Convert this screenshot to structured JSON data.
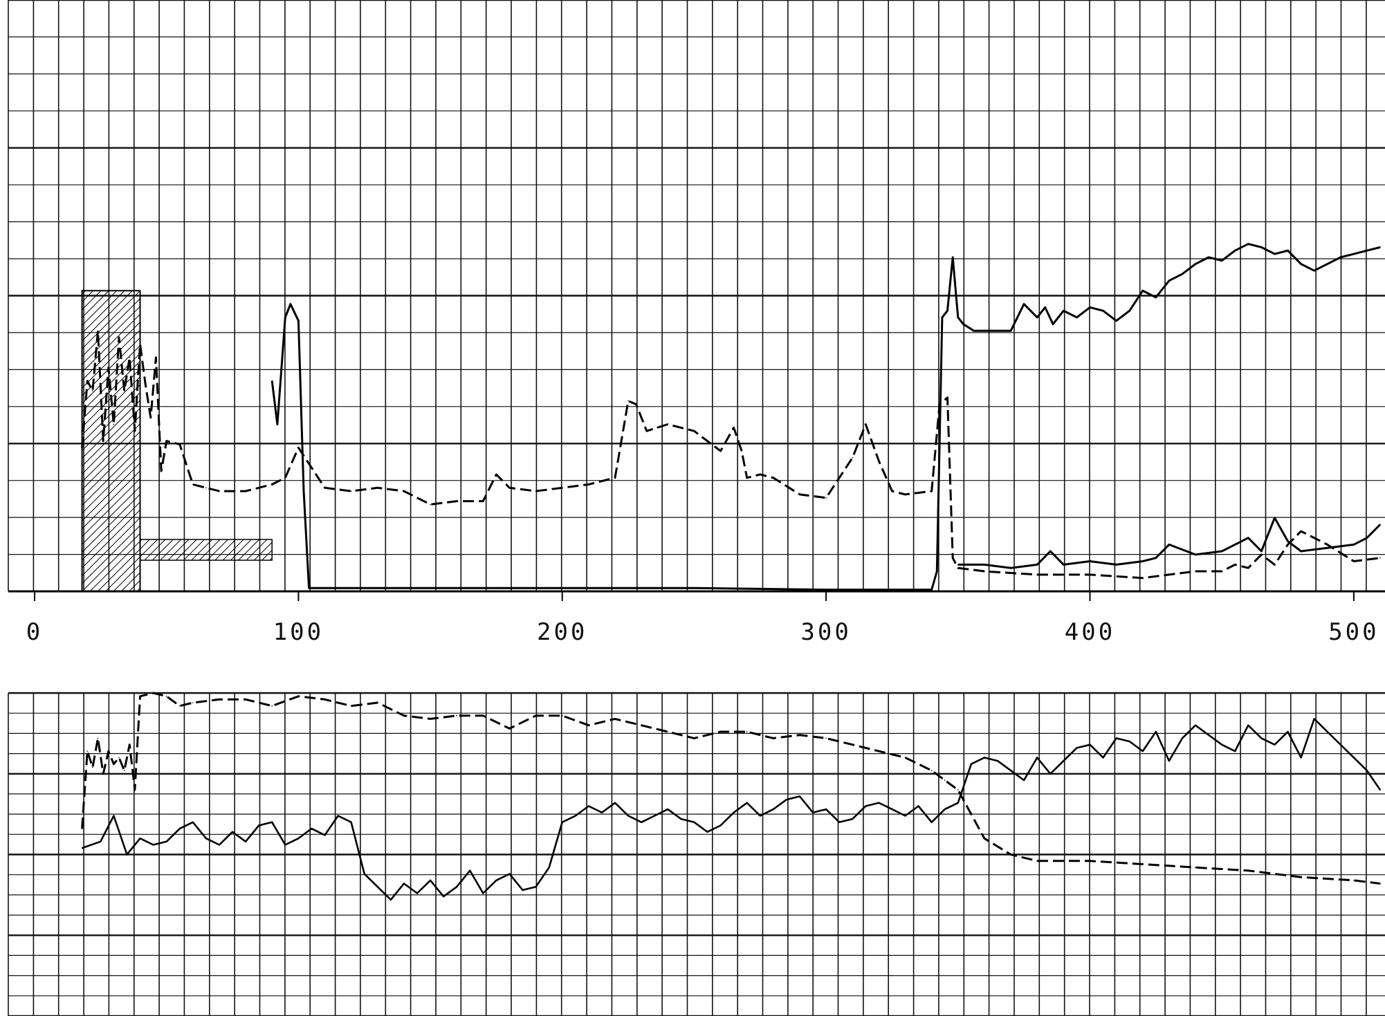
{
  "chart_data": [
    {
      "type": "line",
      "panel": "upper",
      "title": "",
      "xlabel": "",
      "ylabel": "",
      "grid": true,
      "xlim": [
        0,
        510
      ],
      "ylim": [
        0,
        100
      ],
      "x_tick_labels": [
        "0",
        "100",
        "200",
        "300",
        "400",
        "500"
      ],
      "x_tick_values": [
        0,
        100,
        200,
        300,
        400,
        500
      ],
      "series": [
        {
          "style": "solid",
          "x": [
            90,
            92,
            95,
            97,
            100,
            102,
            104,
            150,
            200,
            250,
            300,
            340,
            342,
            344,
            346,
            348,
            350,
            352,
            356,
            370,
            375,
            380,
            383,
            386,
            390,
            395,
            400,
            405,
            410,
            415,
            420,
            425,
            430,
            435,
            440,
            445,
            450,
            455,
            460,
            465,
            470,
            475,
            480,
            485,
            490,
            495,
            500,
            505,
            510
          ],
          "y": [
            63,
            50,
            82,
            86,
            81,
            30,
            1,
            1,
            1,
            1,
            0.5,
            0.5,
            6,
            82,
            84,
            100,
            82,
            80,
            78,
            78,
            86,
            82,
            85,
            80,
            84,
            82,
            85,
            84,
            81,
            84,
            90,
            88,
            93,
            95,
            98,
            100,
            99,
            102,
            104,
            103,
            101,
            102,
            98,
            96,
            98,
            100,
            101,
            102,
            103
          ]
        },
        {
          "style": "dashed",
          "x": [
            18,
            20,
            22,
            24,
            26,
            28,
            30,
            32,
            34,
            36,
            38,
            40,
            42,
            44,
            46,
            48,
            50,
            55,
            60,
            65,
            70,
            80,
            90,
            95,
            100,
            110,
            120,
            130,
            140,
            150,
            160,
            170,
            175,
            180,
            190,
            200,
            210,
            220,
            225,
            228,
            232,
            236,
            240,
            250,
            260,
            265,
            268,
            270,
            275,
            280,
            290,
            300,
            310,
            315,
            320,
            325,
            330,
            340,
            343,
            346,
            348,
            350,
            360,
            380,
            400,
            420,
            440,
            450,
            455,
            460,
            465,
            470,
            475,
            480,
            490,
            500,
            510
          ],
          "y": [
            43,
            63,
            60,
            78,
            45,
            67,
            50,
            76,
            60,
            70,
            48,
            74,
            62,
            52,
            70,
            36,
            45,
            44,
            32,
            31,
            30,
            30,
            32,
            34,
            43,
            31,
            30,
            31,
            30,
            26,
            27,
            27,
            35,
            31,
            30,
            31,
            32,
            34,
            57,
            56,
            48,
            49,
            50,
            48,
            42,
            49,
            42,
            34,
            35,
            34,
            29,
            28,
            40,
            50,
            39,
            30,
            29,
            30,
            56,
            58,
            10,
            7,
            6,
            5,
            5,
            4,
            6,
            6,
            8,
            7,
            11,
            8,
            14,
            18,
            14,
            9,
            10
          ]
        },
        {
          "style": "solid-lower",
          "x": [
            350,
            360,
            370,
            380,
            385,
            390,
            400,
            410,
            420,
            425,
            430,
            440,
            450,
            460,
            465,
            470,
            475,
            480,
            490,
            500,
            505,
            510
          ],
          "y": [
            8,
            8,
            7,
            8,
            12,
            8,
            9,
            8,
            9,
            10,
            14,
            11,
            12,
            16,
            12,
            22,
            15,
            12,
            13,
            14,
            16,
            20
          ]
        },
        {
          "style": "hatched-bar",
          "x": [
            18,
            40
          ],
          "y": [
            0,
            90
          ]
        }
      ]
    },
    {
      "type": "line",
      "panel": "lower",
      "title": "",
      "xlabel": "",
      "ylabel": "",
      "grid": true,
      "xlim": [
        0,
        510
      ],
      "ylim": [
        0,
        100
      ],
      "series": [
        {
          "style": "dashed",
          "x": [
            18,
            20,
            22,
            24,
            26,
            28,
            30,
            32,
            34,
            36,
            38,
            40,
            45,
            50,
            55,
            60,
            70,
            80,
            90,
            100,
            110,
            120,
            130,
            140,
            150,
            160,
            170,
            180,
            190,
            200,
            210,
            220,
            230,
            240,
            250,
            260,
            270,
            280,
            290,
            300,
            310,
            320,
            330,
            340,
            345,
            350,
            360,
            370,
            380,
            400,
            420,
            440,
            460,
            480,
            500,
            510
          ],
          "y": [
            58,
            82,
            77,
            86,
            75,
            82,
            78,
            80,
            76,
            84,
            70,
            99,
            100,
            99,
            96,
            97,
            98,
            98,
            96,
            99,
            98,
            96,
            97,
            93,
            92,
            93,
            93,
            89,
            93,
            93,
            90,
            92,
            90,
            88,
            86,
            88,
            88,
            86,
            87,
            86,
            84,
            82,
            80,
            76,
            73,
            70,
            55,
            50,
            48,
            48,
            47,
            46,
            45,
            43,
            42,
            41
          ]
        },
        {
          "style": "solid-noisy",
          "x": [
            18,
            25,
            30,
            35,
            40,
            45,
            50,
            55,
            60,
            65,
            70,
            75,
            80,
            85,
            90,
            95,
            100,
            105,
            110,
            115,
            120,
            125,
            130,
            135,
            140,
            145,
            150,
            155,
            160,
            165,
            170,
            175,
            180,
            185,
            190,
            195,
            200,
            205,
            210,
            215,
            220,
            225,
            230,
            235,
            240,
            245,
            250,
            255,
            260,
            265,
            270,
            275,
            280,
            285,
            290,
            295,
            300,
            305,
            310,
            315,
            320,
            325,
            330,
            335,
            340,
            345,
            350,
            355,
            360,
            365,
            370,
            375,
            380,
            385,
            390,
            395,
            400,
            405,
            410,
            415,
            420,
            425,
            430,
            435,
            440,
            445,
            450,
            455,
            460,
            465,
            470,
            475,
            480,
            485,
            490,
            495,
            500,
            505,
            510
          ],
          "y": [
            52,
            54,
            62,
            50,
            55,
            53,
            54,
            58,
            60,
            55,
            53,
            57,
            54,
            59,
            60,
            53,
            55,
            58,
            56,
            62,
            60,
            44,
            40,
            36,
            41,
            38,
            42,
            37,
            40,
            45,
            38,
            42,
            44,
            39,
            40,
            46,
            60,
            62,
            65,
            63,
            66,
            62,
            60,
            62,
            64,
            61,
            60,
            57,
            59,
            63,
            66,
            62,
            64,
            67,
            68,
            63,
            64,
            60,
            61,
            65,
            66,
            64,
            62,
            65,
            60,
            64,
            66,
            78,
            80,
            79,
            76,
            73,
            80,
            75,
            79,
            83,
            84,
            80,
            86,
            85,
            82,
            88,
            79,
            86,
            90,
            87,
            84,
            82,
            90,
            86,
            84,
            88,
            80,
            92,
            88,
            84,
            80,
            76,
            70
          ]
        }
      ]
    }
  ]
}
